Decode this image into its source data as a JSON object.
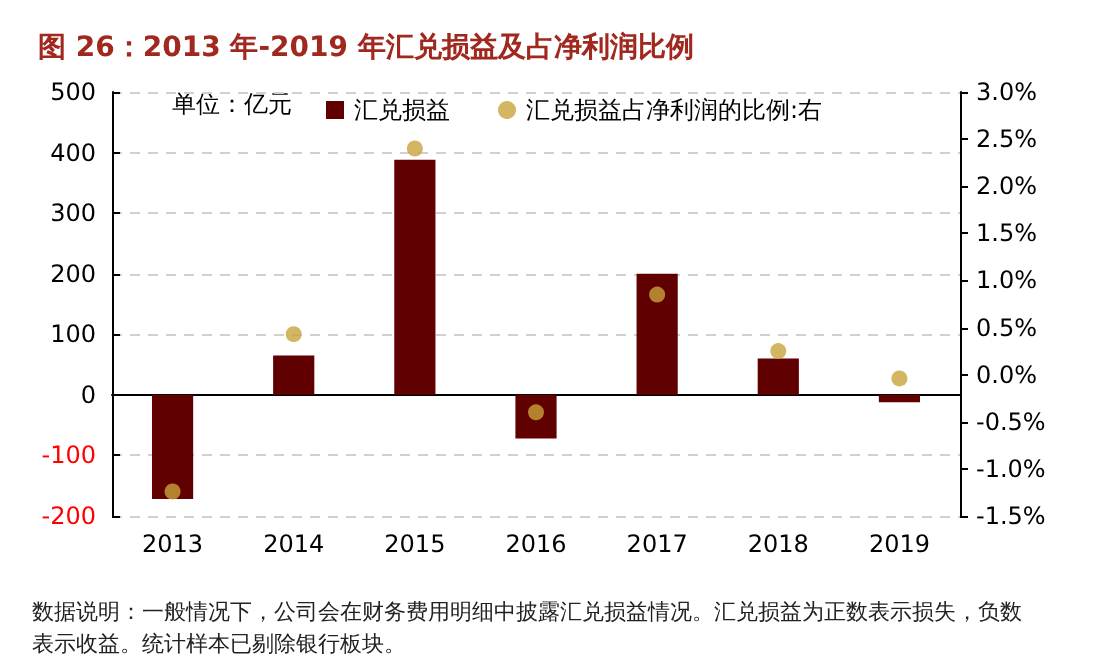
{
  "chart_data": {
    "type": "bar",
    "title": "图 26：2013 年-2019 年汇兑损益及占净利润比例",
    "categories": [
      "2013",
      "2014",
      "2015",
      "2016",
      "2017",
      "2018",
      "2019"
    ],
    "series": [
      {
        "name": "汇兑损益",
        "color": "#600000",
        "values": [
          -172,
          65,
          388,
          -72,
          200,
          60,
          -12
        ]
      },
      {
        "name": "汇兑损益占净利润的比例:右",
        "type": "scatter",
        "axis": "y2",
        "color": "#c9a33b",
        "marker": "circle",
        "values": [
          -1.24,
          0.43,
          2.4,
          -0.4,
          0.85,
          0.25,
          -0.04
        ]
      }
    ],
    "ylim": [
      -200,
      500
    ],
    "yticks": [
      -200,
      -100,
      0,
      100,
      200,
      300,
      400,
      500
    ],
    "y2lim": [
      -1.5,
      3.0
    ],
    "y2ticks": [
      {
        "value": -1.5,
        "label": "-1.5%"
      },
      {
        "value": -1.0,
        "label": "-1.0%"
      },
      {
        "value": -0.5,
        "label": "-0.5%"
      },
      {
        "value": 0,
        "label": "0.0%"
      },
      {
        "value": 0.5,
        "label": "0.5%"
      },
      {
        "value": 1.0,
        "label": "1.0%"
      },
      {
        "value": 1.5,
        "label": "1.5%"
      },
      {
        "value": 2.0,
        "label": "2.0%"
      },
      {
        "value": 2.5,
        "label": "2.5%"
      },
      {
        "value": 3.0,
        "label": "3.0%"
      }
    ],
    "grid": "y",
    "legend": "top",
    "annotations": [
      "单位：亿元",
      "数据说明：一般情况下，公司会在财务费用明细中披露汇兑损益情况。汇兑损益为正数表示损失，负数表示收益。统计样本已剔除银行板块。"
    ]
  }
}
